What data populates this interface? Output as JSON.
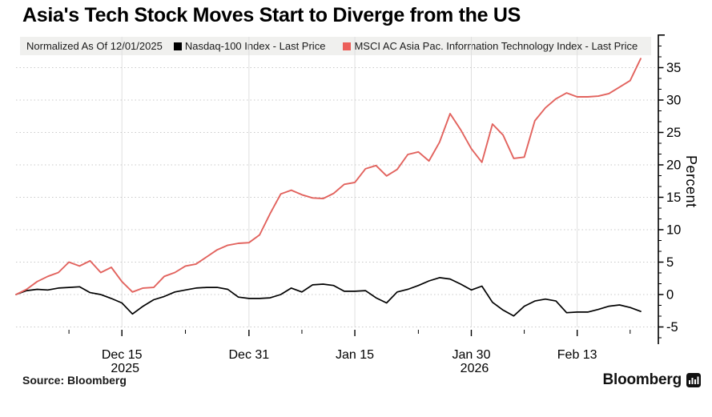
{
  "title": "Asia's Tech Stock Moves Start to Diverge from the US",
  "legend": {
    "note": "Normalized As Of 12/01/2025",
    "items": [
      {
        "label": "Nasdaq-100 Index - Last Price",
        "color": "#000000"
      },
      {
        "label": "MSCI AC Asia Pac. Information Technology Index - Last Price",
        "color": "#ec5f5a"
      }
    ]
  },
  "footer": {
    "source": "Source:  Bloomberg",
    "brand": "Bloomberg"
  },
  "colors": {
    "red_series": "#e2635e",
    "black_series": "#000000",
    "grid_h": "#c9c9c9",
    "grid_v": "#dfdfdf",
    "axis": "#000000",
    "legend_bg": "#f0f0ee"
  },
  "chart_data": {
    "type": "line",
    "title": "Asia's Tech Stock Moves Start to Diverge from the US",
    "xlabel": "",
    "ylabel": "Percent",
    "ylim": [
      -7.5,
      40
    ],
    "y_ticks": [
      -5,
      0,
      5,
      10,
      15,
      20,
      25,
      30,
      35
    ],
    "y_minor_step": 1.6667,
    "grid": "on",
    "legend_position": "top",
    "n_points": 60,
    "x_start_date": "12/01/2025",
    "x_ticks": [
      {
        "label": "Dec 15",
        "year": "2025",
        "day": 10
      },
      {
        "label": "Dec 31",
        "year": "",
        "day": 22
      },
      {
        "label": "Jan 15",
        "year": "",
        "day": 32
      },
      {
        "label": "Jan 30",
        "year": "2026",
        "day": 43
      },
      {
        "label": "Feb 13",
        "year": "",
        "day": 53
      }
    ],
    "x_minor_tick_days": [
      5,
      16,
      27,
      38,
      48,
      58
    ],
    "series": [
      {
        "name": "Nasdaq-100 Index - Last Price",
        "color": "#000000",
        "width": 1.7,
        "values": [
          0,
          0.6,
          0.8,
          0.7,
          1.0,
          1.1,
          1.2,
          0.3,
          0.0,
          -0.6,
          -1.3,
          -3.0,
          -1.8,
          -0.8,
          -0.3,
          0.4,
          0.7,
          1.0,
          1.1,
          1.1,
          0.8,
          -0.4,
          -0.6,
          -0.6,
          -0.5,
          0.0,
          1.0,
          0.4,
          1.5,
          1.6,
          1.4,
          0.5,
          0.5,
          0.6,
          -0.5,
          -1.3,
          0.4,
          0.8,
          1.4,
          2.1,
          2.6,
          2.4,
          1.6,
          0.7,
          1.3,
          -1.2,
          -2.4,
          -3.3,
          -1.8,
          -1.0,
          -0.7,
          -1.0,
          -2.8,
          -2.7,
          -2.7,
          -2.3,
          -1.8,
          -1.6,
          -2.0,
          -2.6
        ]
      },
      {
        "name": "MSCI AC Asia Pac. Information Technology Index - Last Price",
        "color": "#e2635e",
        "width": 1.9,
        "values": [
          0,
          0.8,
          2.0,
          2.8,
          3.4,
          5.0,
          4.4,
          5.2,
          3.4,
          4.2,
          2.0,
          0.4,
          1.0,
          1.1,
          2.8,
          3.4,
          4.4,
          4.7,
          5.8,
          6.9,
          7.6,
          7.9,
          8.0,
          9.2,
          12.5,
          15.5,
          16.1,
          15.4,
          14.9,
          14.8,
          15.6,
          17.0,
          17.3,
          19.4,
          19.9,
          18.3,
          19.3,
          21.6,
          22.0,
          20.6,
          23.5,
          27.9,
          25.4,
          22.5,
          20.4,
          26.3,
          24.6,
          21.0,
          21.2,
          26.8,
          28.8,
          30.2,
          31.1,
          30.5,
          30.5,
          30.6,
          31.0,
          32.0,
          33.0,
          36.4
        ]
      }
    ]
  }
}
